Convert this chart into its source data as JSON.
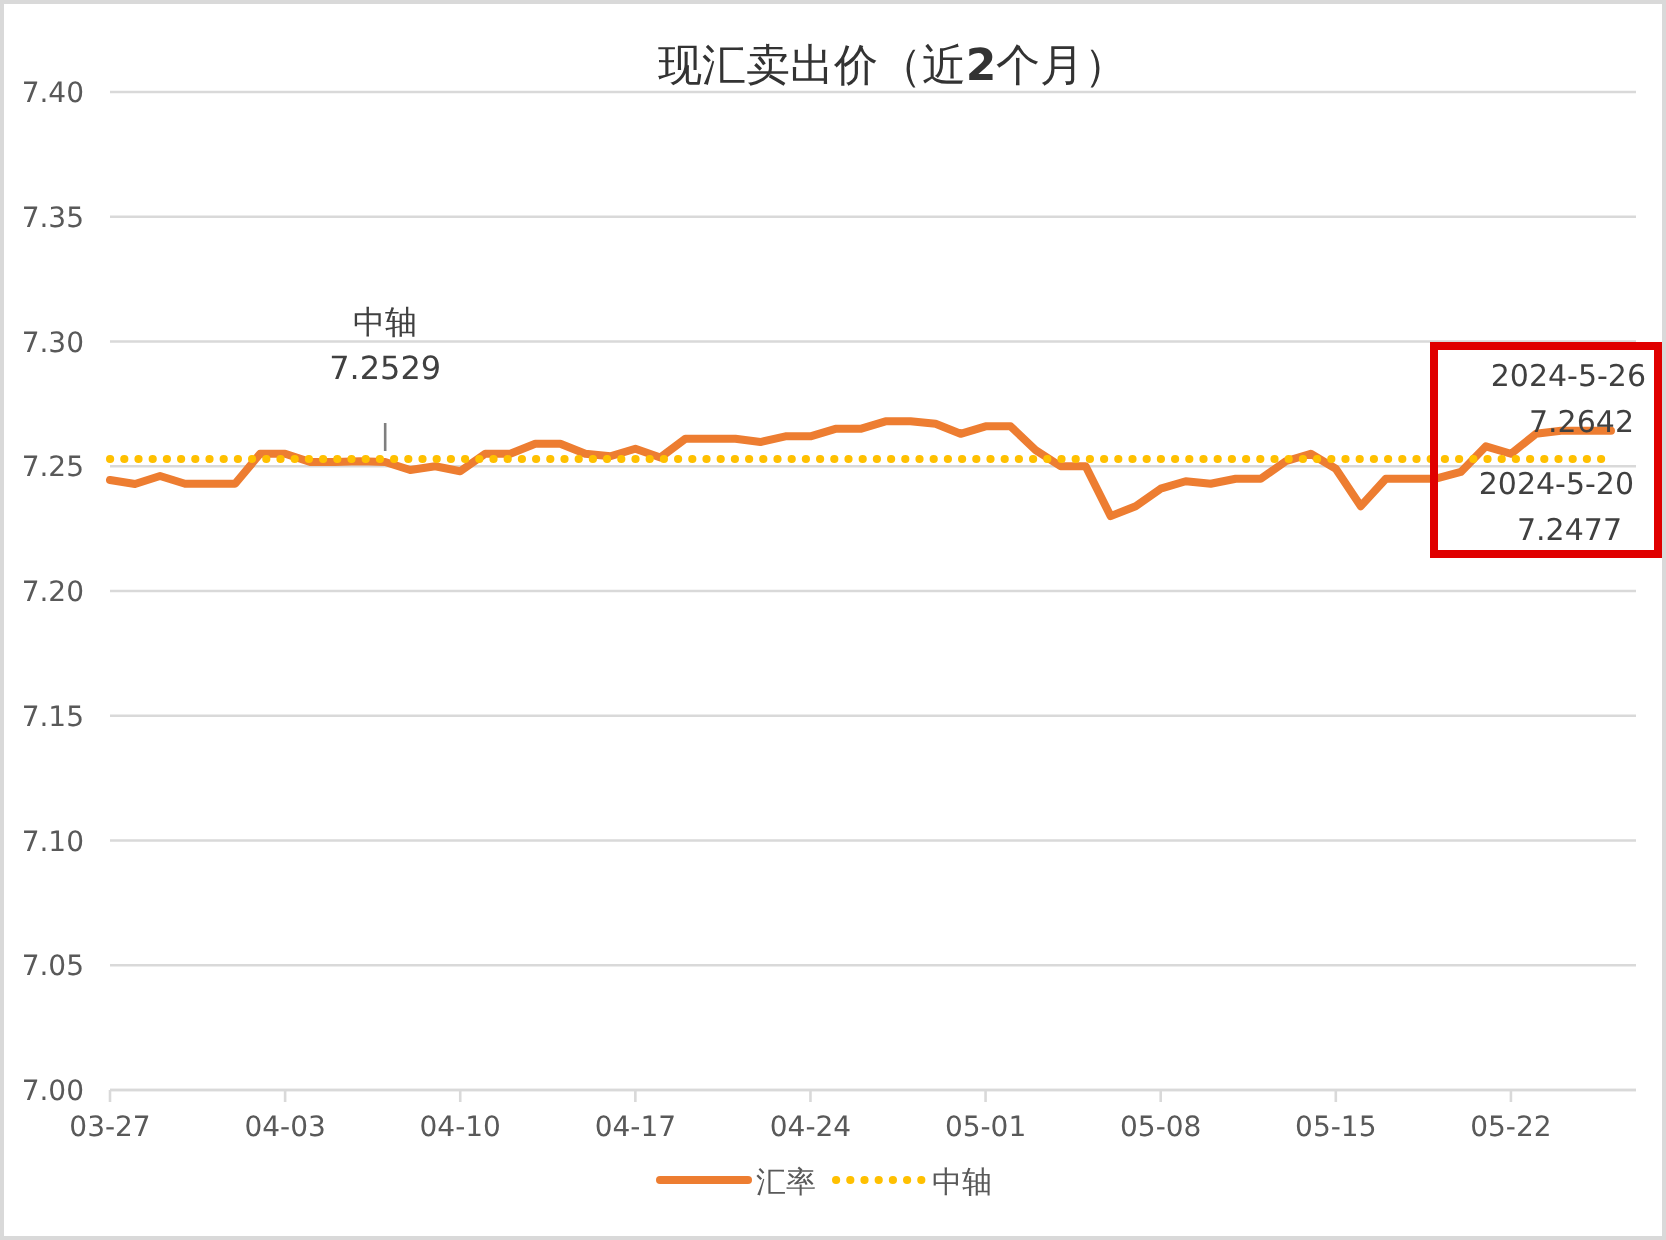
{
  "chart_data": {
    "type": "line",
    "title": "现汇卖出价（近**2**个月）",
    "x": [
      "2024-03-27",
      "2024-03-28",
      "2024-03-29",
      "2024-03-30",
      "2024-03-31",
      "2024-04-01",
      "2024-04-02",
      "2024-04-03",
      "2024-04-04",
      "2024-04-05",
      "2024-04-06",
      "2024-04-07",
      "2024-04-08",
      "2024-04-09",
      "2024-04-10",
      "2024-04-11",
      "2024-04-12",
      "2024-04-13",
      "2024-04-14",
      "2024-04-15",
      "2024-04-16",
      "2024-04-17",
      "2024-04-18",
      "2024-04-19",
      "2024-04-20",
      "2024-04-21",
      "2024-04-22",
      "2024-04-23",
      "2024-04-24",
      "2024-04-25",
      "2024-04-26",
      "2024-04-27",
      "2024-04-28",
      "2024-04-29",
      "2024-04-30",
      "2024-05-01",
      "2024-05-02",
      "2024-05-03",
      "2024-05-04",
      "2024-05-05",
      "2024-05-06",
      "2024-05-07",
      "2024-05-08",
      "2024-05-09",
      "2024-05-10",
      "2024-05-11",
      "2024-05-12",
      "2024-05-13",
      "2024-05-14",
      "2024-05-15",
      "2024-05-16",
      "2024-05-17",
      "2024-05-18",
      "2024-05-19",
      "2024-05-20",
      "2024-05-21",
      "2024-05-22",
      "2024-05-23",
      "2024-05-24",
      "2024-05-25",
      "2024-05-26"
    ],
    "series": [
      {
        "name": "汇率",
        "color": "#ed7d31",
        "line_style": "solid",
        "values": [
          7.2445,
          7.2429,
          7.2461,
          7.243,
          7.243,
          7.243,
          7.255,
          7.255,
          7.2517,
          7.2517,
          7.252,
          7.2517,
          7.2485,
          7.25,
          7.248,
          7.255,
          7.255,
          7.259,
          7.259,
          7.255,
          7.254,
          7.257,
          7.2535,
          7.261,
          7.261,
          7.261,
          7.2597,
          7.262,
          7.262,
          7.265,
          7.265,
          7.268,
          7.268,
          7.267,
          7.263,
          7.266,
          7.266,
          7.2565,
          7.25,
          7.25,
          7.23,
          7.234,
          7.241,
          7.244,
          7.243,
          7.245,
          7.245,
          7.252,
          7.255,
          7.249,
          7.234,
          7.245,
          7.245,
          7.245,
          7.2477,
          7.258,
          7.255,
          7.263,
          7.2642,
          7.2642,
          7.2642
        ]
      },
      {
        "name": "中轴",
        "color": "#ffc000",
        "line_style": "dotted",
        "values": [
          7.2529,
          7.2529,
          7.2529,
          7.2529,
          7.2529,
          7.2529,
          7.2529,
          7.2529,
          7.2529,
          7.2529,
          7.2529,
          7.2529,
          7.2529,
          7.2529,
          7.2529,
          7.2529,
          7.2529,
          7.2529,
          7.2529,
          7.2529,
          7.2529,
          7.2529,
          7.2529,
          7.2529,
          7.2529,
          7.2529,
          7.2529,
          7.2529,
          7.2529,
          7.2529,
          7.2529,
          7.2529,
          7.2529,
          7.2529,
          7.2529,
          7.2529,
          7.2529,
          7.2529,
          7.2529,
          7.2529,
          7.2529,
          7.2529,
          7.2529,
          7.2529,
          7.2529,
          7.2529,
          7.2529,
          7.2529,
          7.2529,
          7.2529,
          7.2529,
          7.2529,
          7.2529,
          7.2529,
          7.2529,
          7.2529,
          7.2529,
          7.2529,
          7.2529,
          7.2529,
          7.2529
        ]
      }
    ],
    "xlim": [
      "2024-03-27",
      "2024-05-27"
    ],
    "xticks": [
      {
        "value": "2024-03-27",
        "label": "03-27"
      },
      {
        "value": "2024-04-03",
        "label": "04-03"
      },
      {
        "value": "2024-04-10",
        "label": "04-10"
      },
      {
        "value": "2024-04-17",
        "label": "04-17"
      },
      {
        "value": "2024-04-24",
        "label": "04-24"
      },
      {
        "value": "2024-05-01",
        "label": "05-01"
      },
      {
        "value": "2024-05-08",
        "label": "05-08"
      },
      {
        "value": "2024-05-15",
        "label": "05-15"
      },
      {
        "value": "2024-05-22",
        "label": "05-22"
      }
    ],
    "ylim": [
      7.0,
      7.4
    ],
    "yticks": [
      {
        "value": 7.0,
        "label": "7.00"
      },
      7.05,
      {
        "value": 7.1,
        "label": "7.10"
      },
      7.15,
      {
        "value": 7.2,
        "label": "7.20"
      },
      7.25,
      {
        "value": 7.3,
        "label": "7.30"
      },
      7.35,
      {
        "value": 7.4,
        "label": "7.40"
      }
    ],
    "grid": "y",
    "legend": "bottom",
    "marker": "none",
    "annotations": [
      {
        "text": "中轴\n7.2529",
        "x": "2024-04-07",
        "y": 7.2529
      },
      {
        "text": "2024-5-26\n7.2642",
        "x": "2024-05-26",
        "y": 7.2642
      },
      {
        "text": "2024-5-20\n7.2477",
        "x": "2024-05-20",
        "y": 7.2477
      }
    ]
  }
}
